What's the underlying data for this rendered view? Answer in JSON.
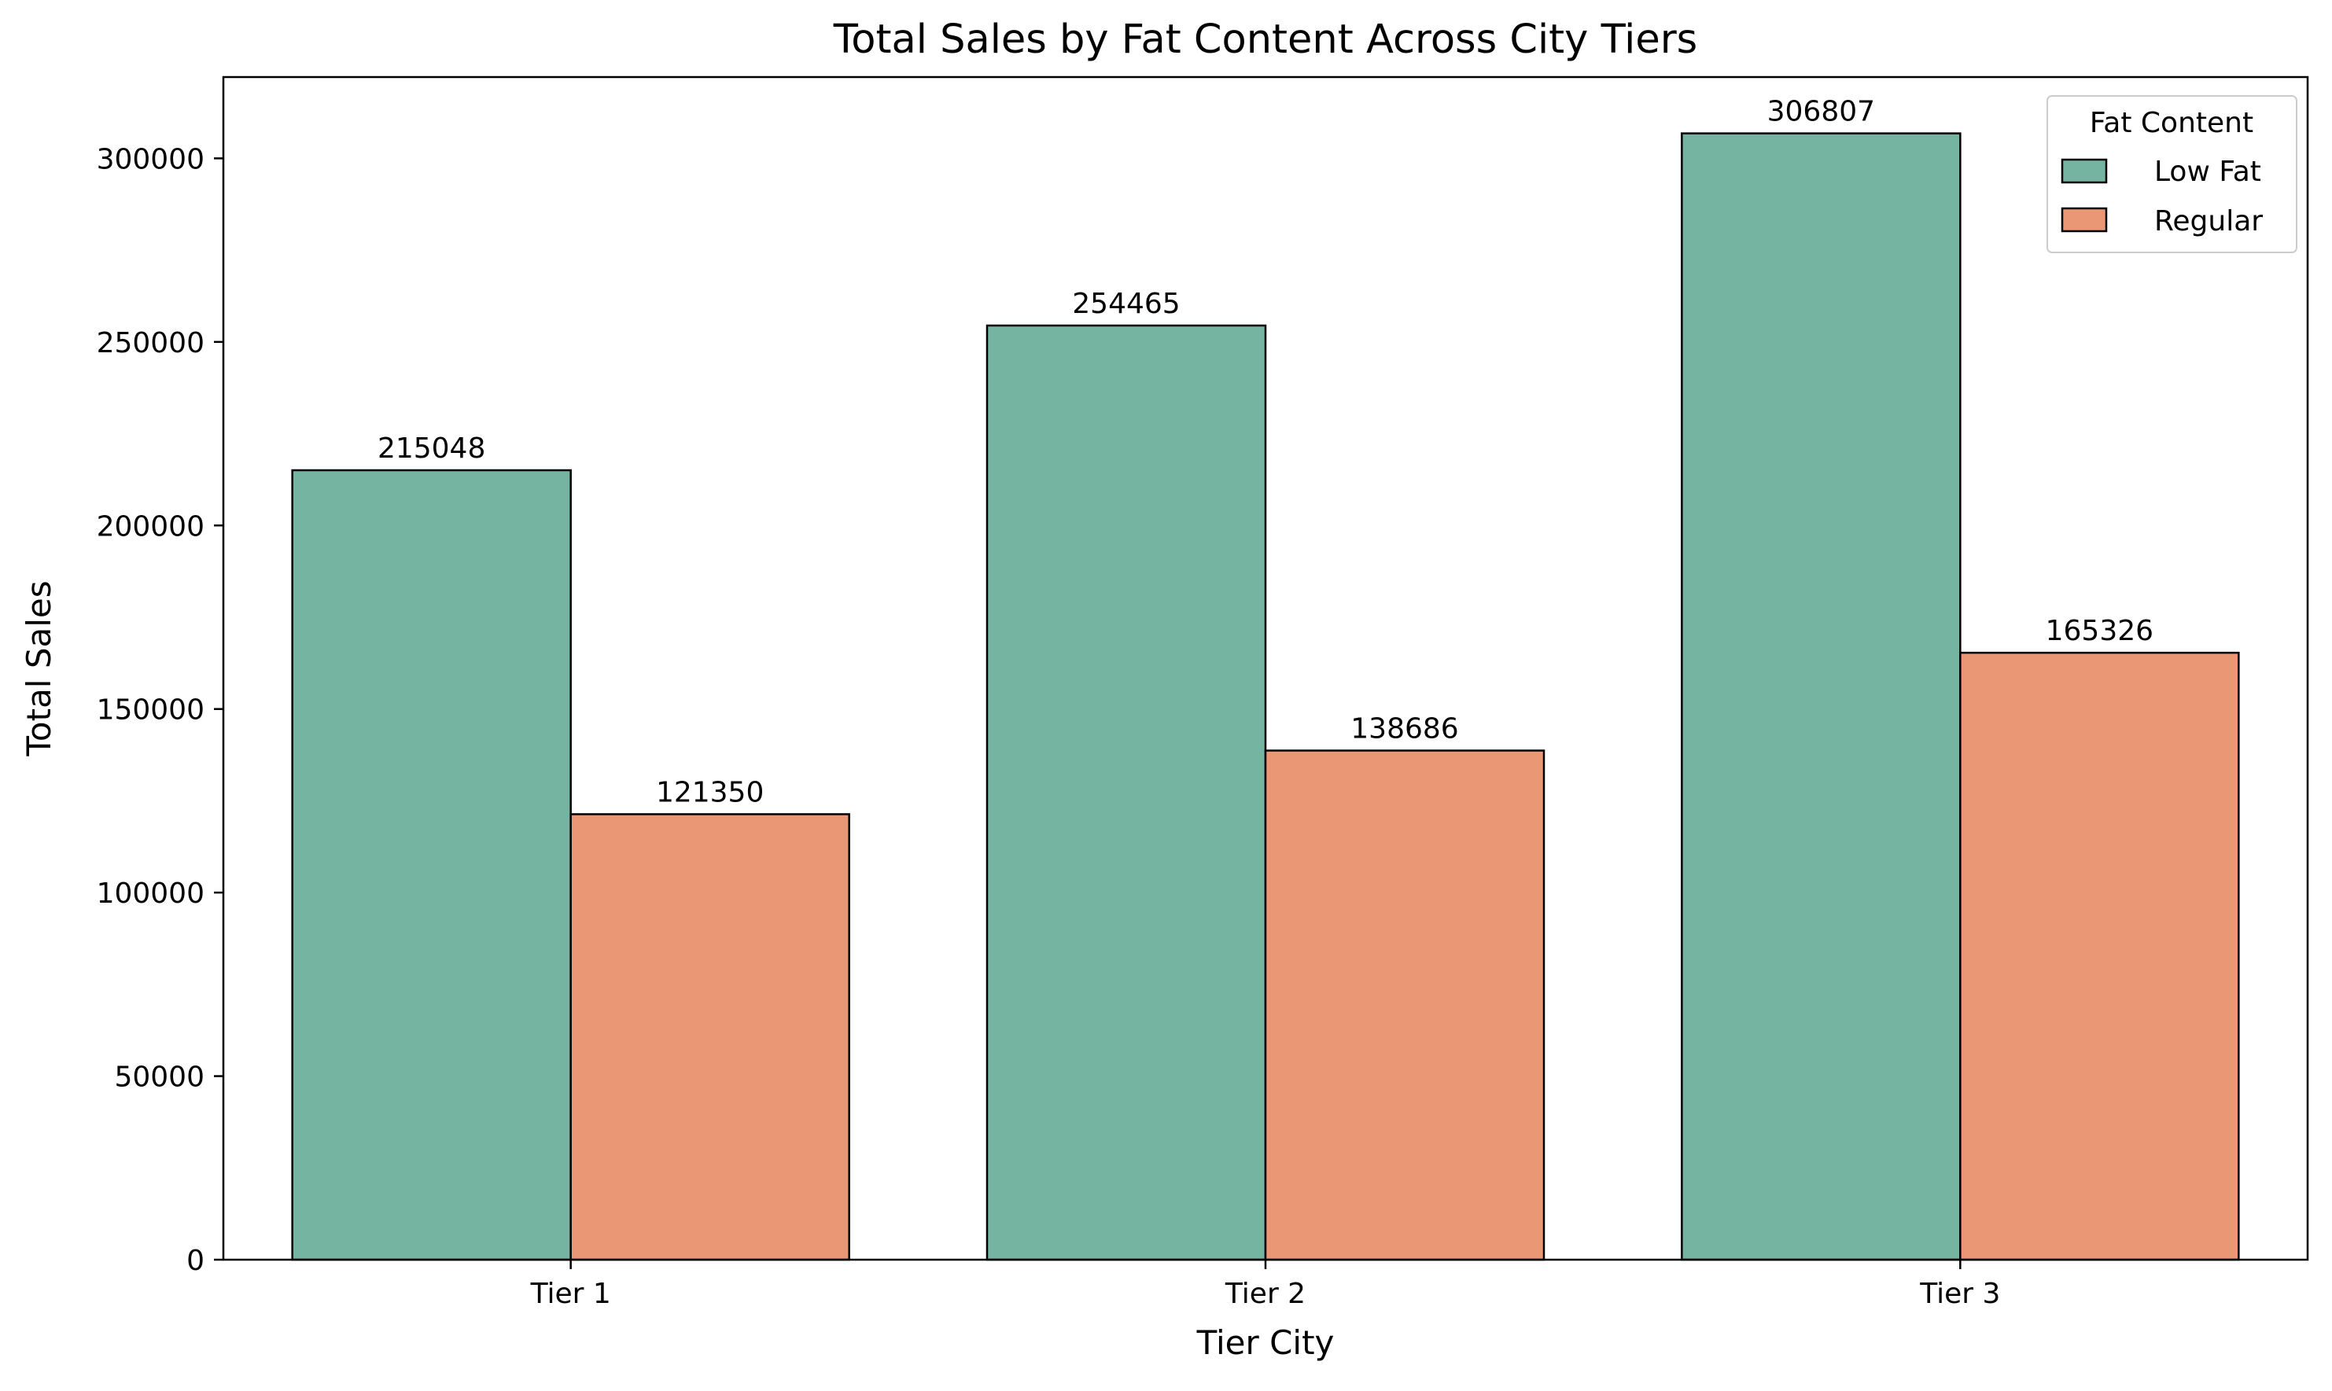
{
  "chart_data": {
    "type": "bar",
    "title": "Total Sales by Fat Content Across City Tiers",
    "xlabel": "Tier City",
    "ylabel": "Total Sales",
    "categories": [
      "Tier 1",
      "Tier 2",
      "Tier 3"
    ],
    "series": [
      {
        "name": "Low Fat",
        "color": "#74b4a0",
        "values": [
          215048,
          254465,
          306807
        ]
      },
      {
        "name": "Regular",
        "color": "#e99775",
        "values": [
          121350,
          138686,
          165326
        ]
      }
    ],
    "ylim": [
      0,
      322147
    ],
    "yticks": [
      0,
      50000,
      100000,
      150000,
      200000,
      250000,
      300000
    ],
    "legend": {
      "title": "Fat Content",
      "placement": "top-right"
    },
    "grid": false,
    "data_labels": true
  }
}
